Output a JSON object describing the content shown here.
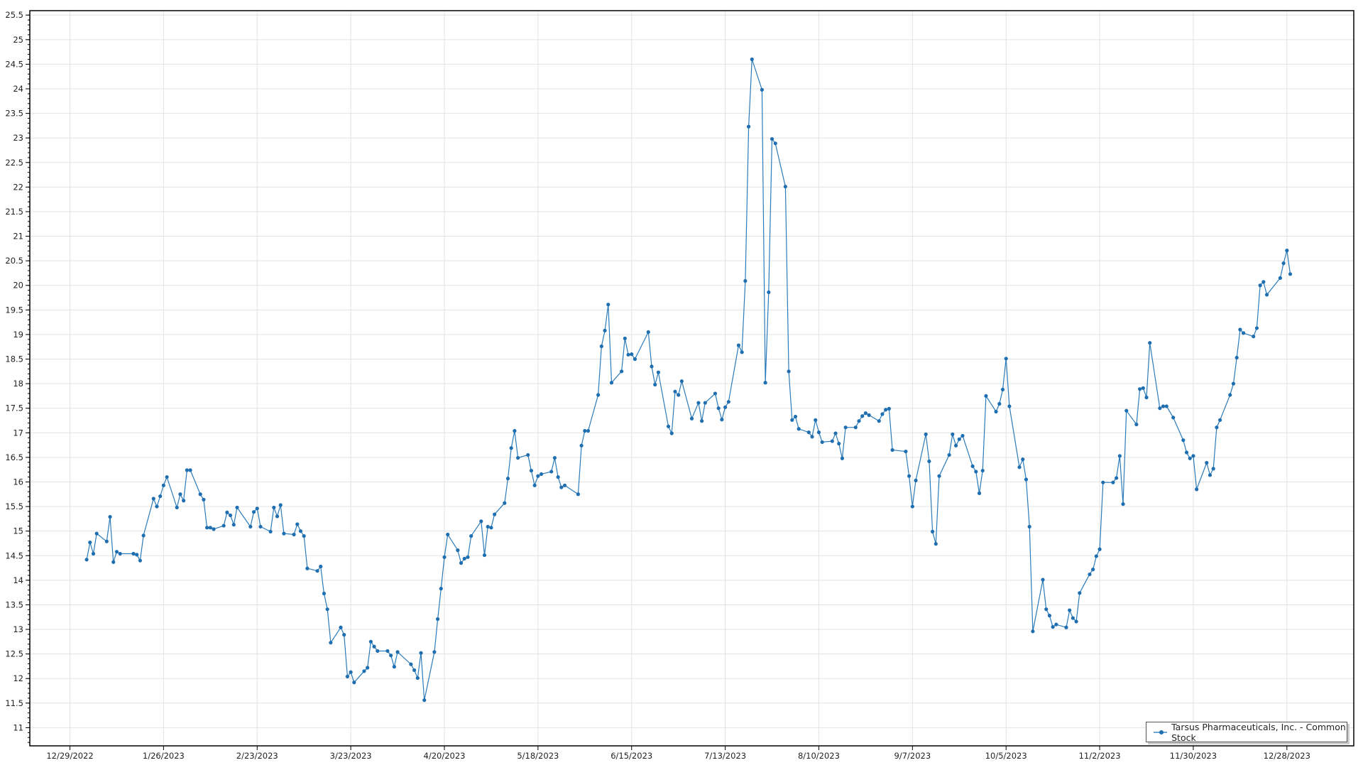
{
  "chart_data": {
    "type": "line",
    "title": "",
    "xlabel": "",
    "ylabel": "",
    "xlim": [
      "2022-12-17",
      "2024-01-17"
    ],
    "ylim": [
      10.63,
      25.59
    ],
    "grid": true,
    "legend_placement": "bottom-right",
    "line_color": "#2b7bba",
    "marker_color": "#1f6fb0",
    "x_tick_labels": [
      "12/29/2022",
      "1/26/2023",
      "2/23/2023",
      "3/23/2023",
      "4/20/2023",
      "5/18/2023",
      "6/15/2023",
      "7/13/2023",
      "8/10/2023",
      "9/7/2023",
      "10/5/2023",
      "11/2/2023",
      "11/30/2023",
      "12/28/2023"
    ],
    "x_tick_dates": [
      "2022-12-29",
      "2023-01-26",
      "2023-02-23",
      "2023-03-23",
      "2023-04-20",
      "2023-05-18",
      "2023-06-15",
      "2023-07-13",
      "2023-08-10",
      "2023-09-07",
      "2023-10-05",
      "2023-11-02",
      "2023-11-30",
      "2023-12-28"
    ],
    "y_tick_labels": [
      "11",
      "11.5",
      "12",
      "12.5",
      "13",
      "13.5",
      "14",
      "14.5",
      "15",
      "15.5",
      "16",
      "16.5",
      "17",
      "17.5",
      "18",
      "18.5",
      "19",
      "19.5",
      "20",
      "20.5",
      "21",
      "21.5",
      "22",
      "22.5",
      "23",
      "23.5",
      "24",
      "24.5",
      "25",
      "25.5"
    ],
    "series": [
      {
        "name": "Tarsus Pharmaceuticals, Inc. - Common Stock",
        "x": [
          "2023-01-03",
          "2023-01-04",
          "2023-01-05",
          "2023-01-06",
          "2023-01-09",
          "2023-01-10",
          "2023-01-11",
          "2023-01-12",
          "2023-01-13",
          "2023-01-17",
          "2023-01-18",
          "2023-01-19",
          "2023-01-20",
          "2023-01-23",
          "2023-01-24",
          "2023-01-25",
          "2023-01-26",
          "2023-01-27",
          "2023-01-30",
          "2023-01-31",
          "2023-02-01",
          "2023-02-02",
          "2023-02-03",
          "2023-02-06",
          "2023-02-07",
          "2023-02-08",
          "2023-02-09",
          "2023-02-10",
          "2023-02-13",
          "2023-02-14",
          "2023-02-15",
          "2023-02-16",
          "2023-02-17",
          "2023-02-21",
          "2023-02-22",
          "2023-02-23",
          "2023-02-24",
          "2023-02-27",
          "2023-02-28",
          "2023-03-01",
          "2023-03-02",
          "2023-03-03",
          "2023-03-06",
          "2023-03-07",
          "2023-03-08",
          "2023-03-09",
          "2023-03-10",
          "2023-03-13",
          "2023-03-14",
          "2023-03-15",
          "2023-03-16",
          "2023-03-17",
          "2023-03-20",
          "2023-03-21",
          "2023-03-22",
          "2023-03-23",
          "2023-03-24",
          "2023-03-27",
          "2023-03-28",
          "2023-03-29",
          "2023-03-30",
          "2023-03-31",
          "2023-04-03",
          "2023-04-04",
          "2023-04-05",
          "2023-04-06",
          "2023-04-10",
          "2023-04-11",
          "2023-04-12",
          "2023-04-13",
          "2023-04-14",
          "2023-04-17",
          "2023-04-18",
          "2023-04-19",
          "2023-04-20",
          "2023-04-21",
          "2023-04-24",
          "2023-04-25",
          "2023-04-26",
          "2023-04-27",
          "2023-04-28",
          "2023-05-01",
          "2023-05-02",
          "2023-05-03",
          "2023-05-04",
          "2023-05-05",
          "2023-05-08",
          "2023-05-09",
          "2023-05-10",
          "2023-05-11",
          "2023-05-12",
          "2023-05-15",
          "2023-05-16",
          "2023-05-17",
          "2023-05-18",
          "2023-05-19",
          "2023-05-22",
          "2023-05-23",
          "2023-05-24",
          "2023-05-25",
          "2023-05-26",
          "2023-05-30",
          "2023-05-31",
          "2023-06-01",
          "2023-06-02",
          "2023-06-05",
          "2023-06-06",
          "2023-06-07",
          "2023-06-08",
          "2023-06-09",
          "2023-06-12",
          "2023-06-13",
          "2023-06-14",
          "2023-06-15",
          "2023-06-16",
          "2023-06-20",
          "2023-06-21",
          "2023-06-22",
          "2023-06-23",
          "2023-06-26",
          "2023-06-27",
          "2023-06-28",
          "2023-06-29",
          "2023-06-30",
          "2023-07-03",
          "2023-07-05",
          "2023-07-06",
          "2023-07-07",
          "2023-07-10",
          "2023-07-11",
          "2023-07-12",
          "2023-07-13",
          "2023-07-14",
          "2023-07-17",
          "2023-07-18",
          "2023-07-19",
          "2023-07-20",
          "2023-07-21",
          "2023-07-24",
          "2023-07-25",
          "2023-07-26",
          "2023-07-27",
          "2023-07-28",
          "2023-07-31",
          "2023-08-01",
          "2023-08-02",
          "2023-08-03",
          "2023-08-04",
          "2023-08-07",
          "2023-08-08",
          "2023-08-09",
          "2023-08-10",
          "2023-08-11",
          "2023-08-14",
          "2023-08-15",
          "2023-08-16",
          "2023-08-17",
          "2023-08-18",
          "2023-08-21",
          "2023-08-22",
          "2023-08-23",
          "2023-08-24",
          "2023-08-25",
          "2023-08-28",
          "2023-08-29",
          "2023-08-30",
          "2023-08-31",
          "2023-09-01",
          "2023-09-05",
          "2023-09-06",
          "2023-09-07",
          "2023-09-08",
          "2023-09-11",
          "2023-09-12",
          "2023-09-13",
          "2023-09-14",
          "2023-09-15",
          "2023-09-18",
          "2023-09-19",
          "2023-09-20",
          "2023-09-21",
          "2023-09-22",
          "2023-09-25",
          "2023-09-26",
          "2023-09-27",
          "2023-09-28",
          "2023-09-29",
          "2023-10-02",
          "2023-10-03",
          "2023-10-04",
          "2023-10-05",
          "2023-10-06",
          "2023-10-09",
          "2023-10-10",
          "2023-10-11",
          "2023-10-12",
          "2023-10-13",
          "2023-10-16",
          "2023-10-17",
          "2023-10-18",
          "2023-10-19",
          "2023-10-20",
          "2023-10-23",
          "2023-10-24",
          "2023-10-25",
          "2023-10-26",
          "2023-10-27",
          "2023-10-30",
          "2023-10-31",
          "2023-11-01",
          "2023-11-02",
          "2023-11-03",
          "2023-11-06",
          "2023-11-07",
          "2023-11-08",
          "2023-11-09",
          "2023-11-10",
          "2023-11-13",
          "2023-11-14",
          "2023-11-15",
          "2023-11-16",
          "2023-11-17",
          "2023-11-20",
          "2023-11-21",
          "2023-11-22",
          "2023-11-24",
          "2023-11-27",
          "2023-11-28",
          "2023-11-29",
          "2023-11-30",
          "2023-12-01",
          "2023-12-04",
          "2023-12-05",
          "2023-12-06",
          "2023-12-07",
          "2023-12-08",
          "2023-12-11",
          "2023-12-12",
          "2023-12-13",
          "2023-12-14",
          "2023-12-15",
          "2023-12-18",
          "2023-12-19",
          "2023-12-20",
          "2023-12-21",
          "2023-12-22",
          "2023-12-26",
          "2023-12-27",
          "2023-12-28",
          "2023-12-29"
        ],
        "values": [
          14.42,
          14.77,
          14.54,
          14.95,
          14.79,
          15.29,
          14.37,
          14.58,
          14.54,
          14.54,
          14.52,
          14.4,
          14.91,
          15.66,
          15.5,
          15.71,
          15.93,
          16.1,
          15.48,
          15.75,
          15.62,
          16.24,
          16.24,
          15.75,
          15.64,
          15.07,
          15.07,
          15.04,
          15.11,
          15.38,
          15.32,
          15.13,
          15.48,
          15.09,
          15.39,
          15.46,
          15.09,
          14.99,
          15.48,
          15.3,
          15.53,
          14.95,
          14.93,
          15.14,
          15.0,
          14.9,
          14.24,
          14.19,
          14.28,
          13.73,
          13.41,
          12.73,
          13.04,
          12.89,
          12.04,
          12.13,
          11.92,
          12.15,
          12.22,
          12.75,
          12.65,
          12.56,
          12.56,
          12.47,
          12.24,
          12.54,
          12.29,
          12.17,
          12.01,
          12.52,
          11.56,
          12.54,
          13.21,
          13.83,
          14.47,
          14.93,
          14.61,
          14.35,
          14.44,
          14.47,
          14.9,
          15.2,
          14.51,
          15.09,
          15.07,
          15.34,
          15.57,
          16.07,
          16.69,
          17.04,
          16.49,
          16.55,
          16.23,
          15.93,
          16.12,
          16.16,
          16.21,
          16.49,
          16.1,
          15.89,
          15.93,
          15.75,
          16.74,
          17.04,
          17.04,
          17.77,
          18.76,
          19.08,
          19.61,
          18.02,
          18.25,
          18.92,
          18.59,
          18.6,
          18.5,
          19.05,
          18.35,
          17.98,
          18.23,
          17.13,
          16.99,
          17.84,
          17.77,
          18.05,
          17.29,
          17.61,
          17.24,
          17.61,
          17.8,
          17.5,
          17.27,
          17.52,
          17.63,
          18.78,
          18.64,
          20.09,
          23.23,
          24.6,
          23.98,
          18.02,
          19.86,
          22.98,
          22.89,
          22.01,
          18.25,
          17.26,
          17.33,
          17.08,
          17.01,
          16.92,
          17.26,
          17.01,
          16.81,
          16.83,
          16.99,
          16.78,
          16.48,
          17.11,
          17.11,
          17.24,
          17.34,
          17.4,
          17.36,
          17.24,
          17.38,
          17.47,
          17.49,
          16.65,
          16.62,
          16.12,
          15.5,
          16.03,
          16.97,
          16.42,
          14.99,
          14.74,
          16.12,
          16.55,
          16.97,
          16.74,
          16.87,
          16.94,
          16.32,
          16.21,
          15.77,
          16.23,
          17.75,
          17.43,
          17.59,
          17.88,
          18.51,
          17.54,
          16.3,
          16.46,
          16.05,
          15.09,
          12.96,
          14.01,
          13.41,
          13.28,
          13.05,
          13.1,
          13.04,
          13.39,
          13.23,
          13.16,
          13.74,
          14.12,
          14.22,
          14.49,
          14.63,
          15.99,
          15.99,
          16.08,
          16.53,
          15.55,
          17.45,
          17.17,
          17.89,
          17.91,
          17.72,
          18.83,
          17.5,
          17.54,
          17.54,
          17.31,
          16.85,
          16.6,
          16.48,
          16.53,
          15.85,
          16.39,
          16.14,
          16.27,
          17.11,
          17.26,
          17.77,
          18.0,
          18.53,
          19.1,
          19.03,
          18.96,
          19.13,
          20.0,
          20.07,
          19.81,
          20.15,
          20.45,
          20.71,
          20.23
        ]
      }
    ]
  }
}
